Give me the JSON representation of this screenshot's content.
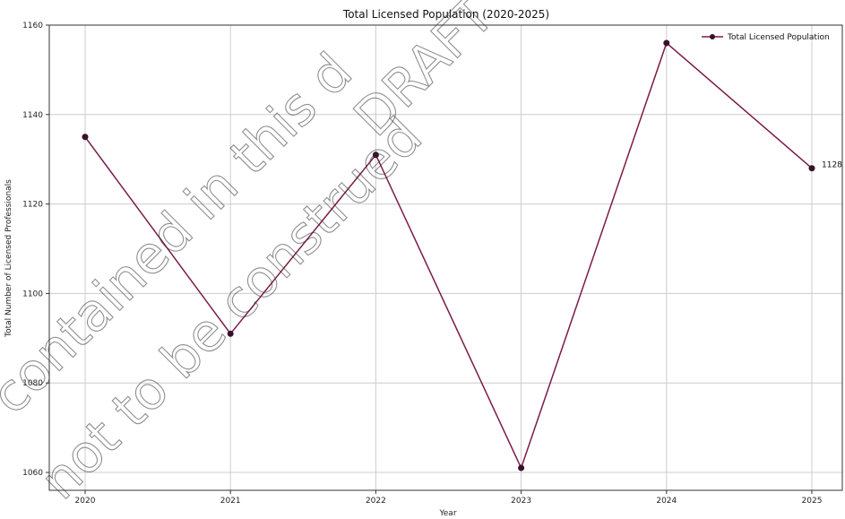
{
  "chart_data": {
    "type": "line",
    "title": "Total Licensed Population (2020-2025)",
    "xlabel": "Year",
    "ylabel": "Total Number of Licensed Professionals",
    "categories": [
      "2020",
      "2021",
      "2022",
      "2023",
      "2024",
      "2025"
    ],
    "series": [
      {
        "name": "Total Licensed Population",
        "values": [
          1135,
          1091,
          1131,
          1061,
          1156,
          1128
        ]
      }
    ],
    "ylim": [
      1056,
      1160
    ],
    "yticks": [
      1060,
      1080,
      1100,
      1120,
      1140,
      1160
    ],
    "grid": true,
    "legend": "top-right",
    "annotations": [
      {
        "category": "2025",
        "text": "1128"
      }
    ],
    "colors": {
      "line": "#7a1b4a",
      "marker": "#3a1028",
      "grid": "#cccccc",
      "axis": "#333333"
    }
  },
  "watermark": {
    "lines": [
      "contained in this d",
      "not to be construed",
      "DRAFT"
    ]
  }
}
